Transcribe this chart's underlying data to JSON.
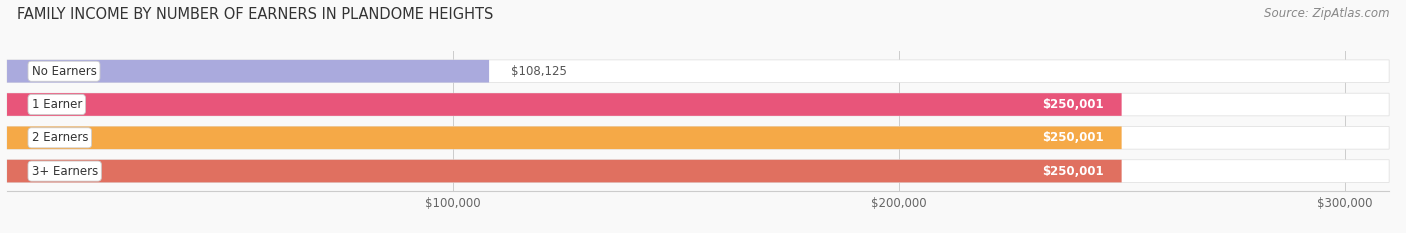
{
  "title": "FAMILY INCOME BY NUMBER OF EARNERS IN PLANDOME HEIGHTS",
  "source": "Source: ZipAtlas.com",
  "categories": [
    "No Earners",
    "1 Earner",
    "2 Earners",
    "3+ Earners"
  ],
  "values": [
    108125,
    250001,
    250001,
    250001
  ],
  "bar_colors": [
    "#aaaadd",
    "#e8557a",
    "#f5a947",
    "#e07060"
  ],
  "bar_bg_color": "#eeeeee",
  "label_colors": [
    "#333333",
    "#ffffff",
    "#ffffff",
    "#ffffff"
  ],
  "xlim": [
    0,
    310000
  ],
  "xticks": [
    100000,
    200000,
    300000
  ],
  "xtick_labels": [
    "$100,000",
    "$200,000",
    "$300,000"
  ],
  "value_labels": [
    "$108,125",
    "$250,001",
    "$250,001",
    "$250,001"
  ],
  "value_label_colors": [
    "#555555",
    "#ffffff",
    "#ffffff",
    "#ffffff"
  ],
  "background_color": "#f9f9f9",
  "title_fontsize": 10.5,
  "source_fontsize": 8.5,
  "bar_height": 0.68,
  "figsize": [
    14.06,
    2.33
  ],
  "dpi": 100
}
